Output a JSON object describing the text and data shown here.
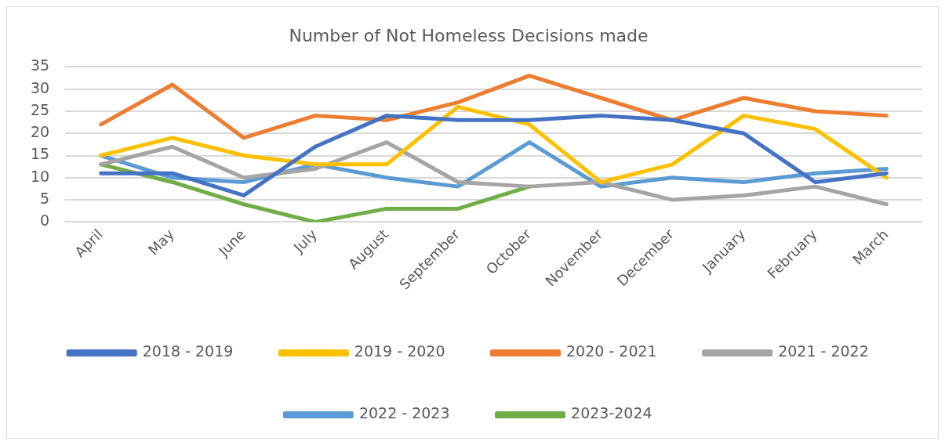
{
  "chart_data": {
    "type": "line",
    "title": "Number of Not Homeless Decisions made",
    "categories": [
      "April",
      "May",
      "June",
      "July",
      "August",
      "September",
      "October",
      "November",
      "December",
      "January",
      "February",
      "March"
    ],
    "series": [
      {
        "name": "2018 - 2019",
        "color": "#4472c4",
        "values": [
          11,
          11,
          6,
          17,
          24,
          23,
          23,
          24,
          23,
          20,
          9,
          11
        ]
      },
      {
        "name": "2019 - 2020",
        "color": "#ffc000",
        "values": [
          15,
          19,
          15,
          13,
          13,
          26,
          22,
          9,
          13,
          24,
          21,
          10
        ]
      },
      {
        "name": "2020 - 2021",
        "color": "#ed7d31",
        "values": [
          22,
          31,
          19,
          24,
          23,
          27,
          33,
          28,
          23,
          28,
          25,
          24
        ]
      },
      {
        "name": "2021 - 2022",
        "color": "#a5a5a5",
        "values": [
          13,
          17,
          10,
          12,
          18,
          9,
          8,
          9,
          5,
          6,
          8,
          4
        ]
      },
      {
        "name": "2022 - 2023",
        "color": "#5b9bd5",
        "values": [
          15,
          10,
          9,
          13,
          10,
          8,
          18,
          8,
          10,
          9,
          11,
          12
        ]
      },
      {
        "name": "2023-2024",
        "color": "#70ad47",
        "values": [
          13,
          9,
          4,
          0,
          3,
          3,
          8,
          null,
          null,
          null,
          null,
          null
        ]
      }
    ],
    "ylim": [
      0,
      35
    ],
    "yticks": [
      0,
      5,
      10,
      15,
      20,
      25,
      30,
      35
    ],
    "grid": "y",
    "legend": "bottom",
    "marker": "none",
    "line_style": "solid"
  }
}
